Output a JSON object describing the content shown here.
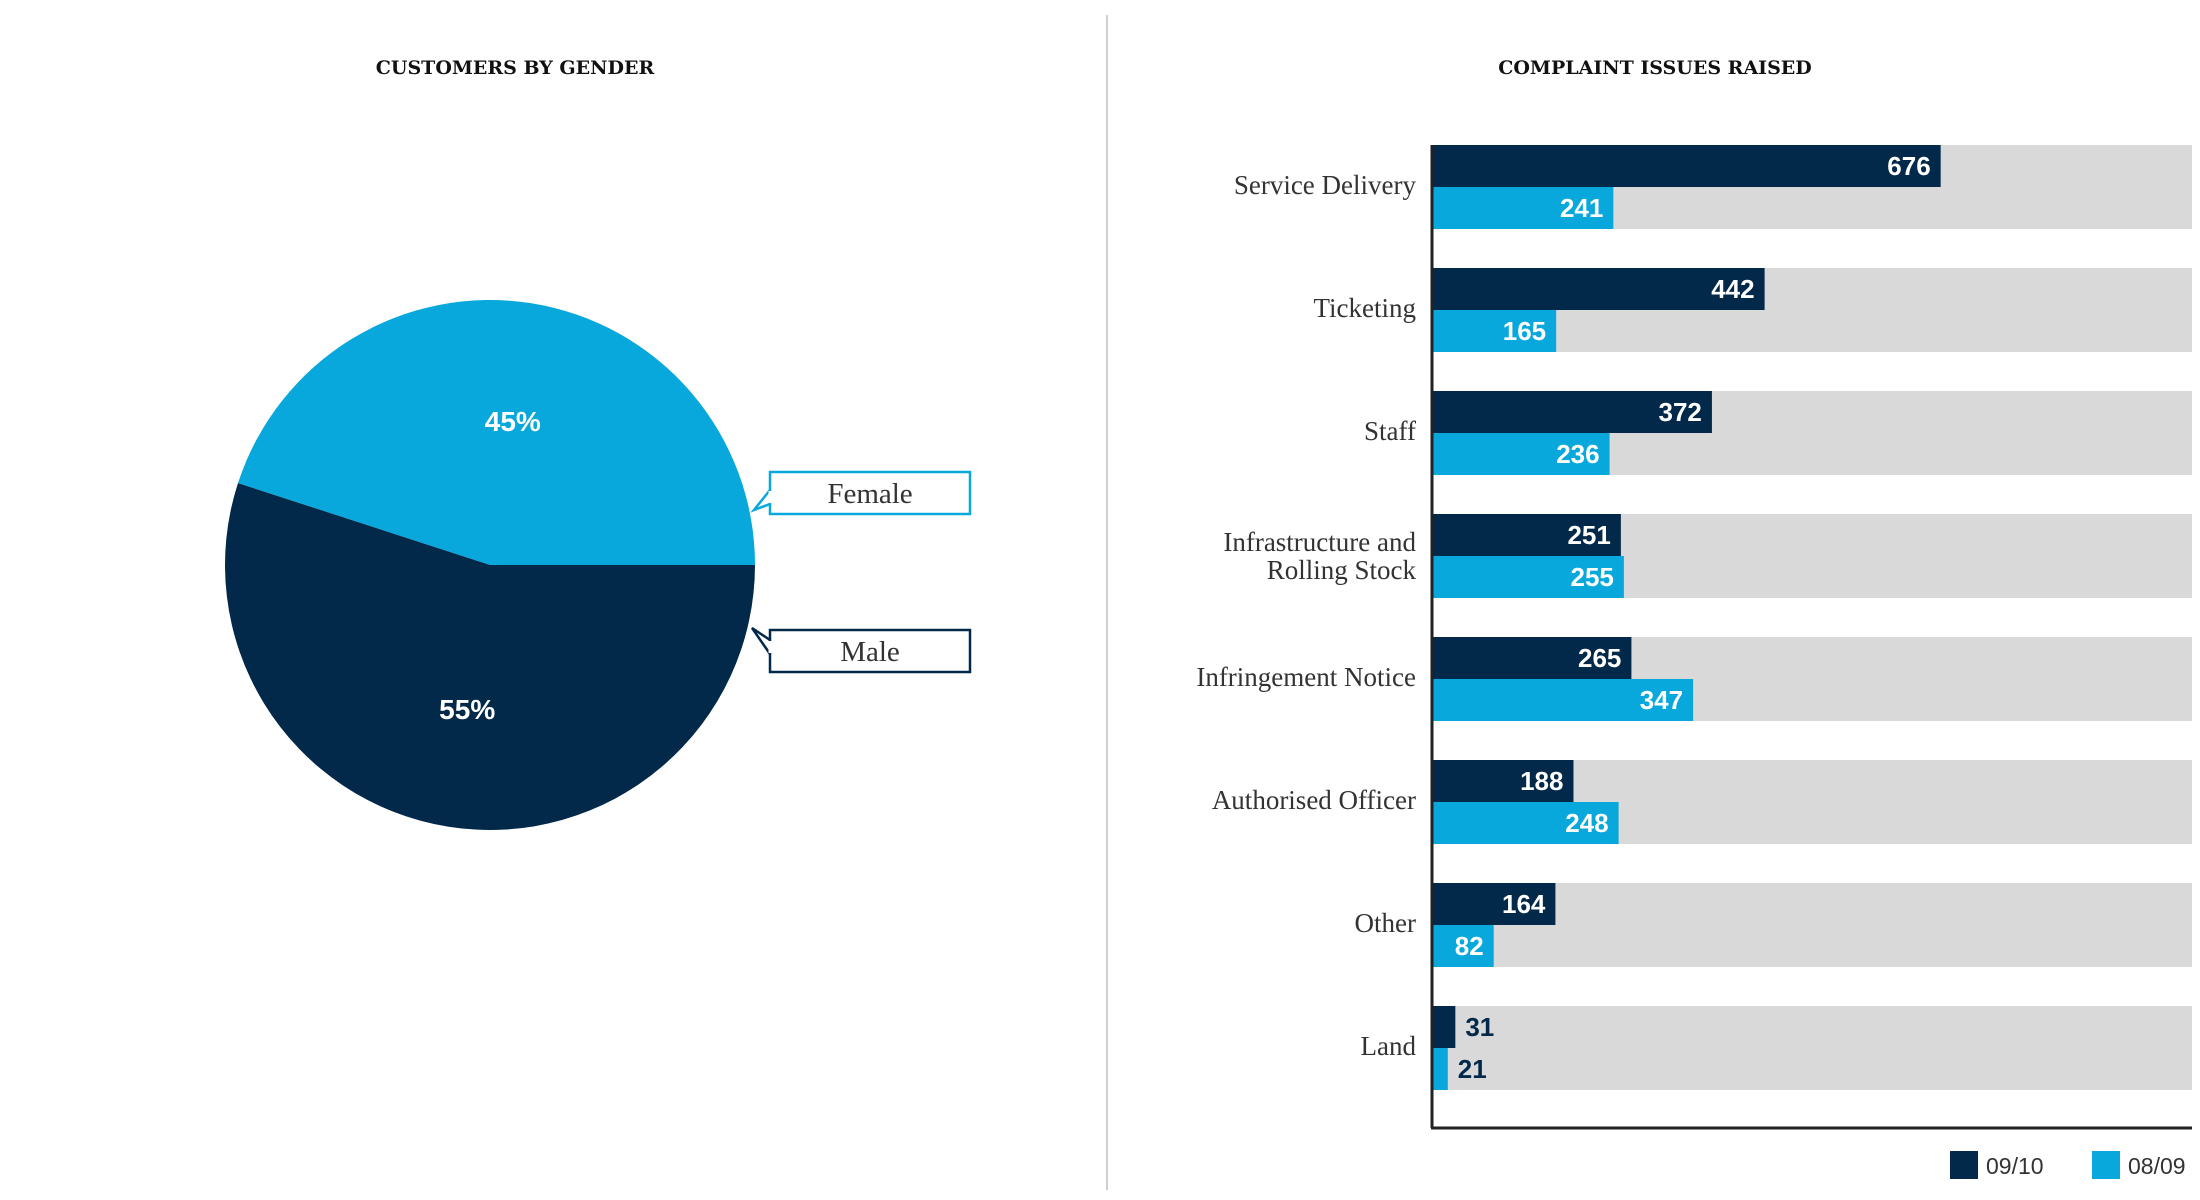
{
  "colors": {
    "dark": "#02284A",
    "light": "#09A8DC",
    "track": "#D9D9D9",
    "divider": "#D0D0D0",
    "axis": "#222222"
  },
  "chart_data": [
    {
      "type": "pie",
      "title": "CUSTOMERS BY GENDER",
      "slices": [
        {
          "label": "Female",
          "value": 45,
          "display": "45%"
        },
        {
          "label": "Male",
          "value": 55,
          "display": "55%"
        }
      ],
      "legend": "callouts-right"
    },
    {
      "type": "bar",
      "orientation": "horizontal",
      "title": "COMPLAINT ISSUES RAISED",
      "categories": [
        [
          "Service Delivery"
        ],
        [
          "Ticketing"
        ],
        [
          "Staff"
        ],
        [
          "Infrastructure and",
          "Rolling Stock"
        ],
        [
          "Infringement Notice"
        ],
        [
          "Authorised Officer"
        ],
        [
          "Other"
        ],
        [
          "Land"
        ]
      ],
      "series": [
        {
          "name": "09/10",
          "values": [
            676,
            442,
            372,
            251,
            265,
            188,
            164,
            31
          ]
        },
        {
          "name": "08/09",
          "values": [
            241,
            165,
            236,
            255,
            347,
            248,
            82,
            21
          ]
        }
      ],
      "xlim": [
        0,
        1010
      ],
      "legend": "bottom-right",
      "grid": false
    }
  ]
}
